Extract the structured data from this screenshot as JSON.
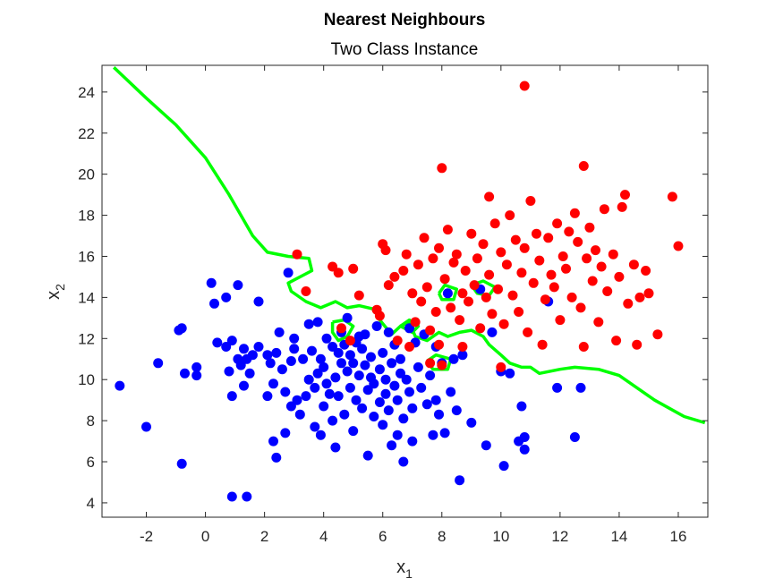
{
  "chart_data": {
    "type": "scatter",
    "title": "Nearest Neighbours",
    "subtitle": "Two Class Instance",
    "xlabel": "x",
    "xlabel_sub": "1",
    "ylabel": "x",
    "ylabel_sub": "2",
    "xlim": [
      -3.5,
      17
    ],
    "ylim": [
      3.3,
      25.3
    ],
    "xticks": [
      -2,
      0,
      2,
      4,
      6,
      8,
      10,
      12,
      14,
      16
    ],
    "yticks": [
      4,
      6,
      8,
      10,
      12,
      14,
      16,
      18,
      20,
      22,
      24
    ],
    "grid": false,
    "colors": {
      "blue": "#0000ff",
      "red": "#ff0000",
      "boundary": "#00ff00"
    },
    "series": [
      {
        "color": "#0000ff",
        "points": [
          [
            -2.9,
            9.7
          ],
          [
            -2.0,
            7.7
          ],
          [
            -1.6,
            10.8
          ],
          [
            -0.9,
            12.4
          ],
          [
            -0.8,
            12.5
          ],
          [
            -0.8,
            5.9
          ],
          [
            -0.7,
            10.3
          ],
          [
            -0.3,
            10.6
          ],
          [
            -0.3,
            10.2
          ],
          [
            0.2,
            14.7
          ],
          [
            0.3,
            13.7
          ],
          [
            0.4,
            11.8
          ],
          [
            0.7,
            11.6
          ],
          [
            0.7,
            14.0
          ],
          [
            0.8,
            10.4
          ],
          [
            0.9,
            9.2
          ],
          [
            0.9,
            11.9
          ],
          [
            0.9,
            4.3
          ],
          [
            1.1,
            11.0
          ],
          [
            1.2,
            10.7
          ],
          [
            1.3,
            11.5
          ],
          [
            1.3,
            9.7
          ],
          [
            1.4,
            4.3
          ],
          [
            1.5,
            10.3
          ],
          [
            1.6,
            11.2
          ],
          [
            1.1,
            14.6
          ],
          [
            1.4,
            11.0
          ],
          [
            1.8,
            13.8
          ],
          [
            1.8,
            11.6
          ],
          [
            2.1,
            11.2
          ],
          [
            2.1,
            9.2
          ],
          [
            2.2,
            10.8
          ],
          [
            2.3,
            7.0
          ],
          [
            2.3,
            9.8
          ],
          [
            2.4,
            6.2
          ],
          [
            2.4,
            11.3
          ],
          [
            2.5,
            12.3
          ],
          [
            2.6,
            10.5
          ],
          [
            2.7,
            7.4
          ],
          [
            2.7,
            9.4
          ],
          [
            2.8,
            15.2
          ],
          [
            2.9,
            8.7
          ],
          [
            2.9,
            10.9
          ],
          [
            3.0,
            11.5
          ],
          [
            3.0,
            12.0
          ],
          [
            3.1,
            9.0
          ],
          [
            3.2,
            8.3
          ],
          [
            3.3,
            11.0
          ],
          [
            3.4,
            9.2
          ],
          [
            3.5,
            10.0
          ],
          [
            3.5,
            12.7
          ],
          [
            3.6,
            11.4
          ],
          [
            3.7,
            7.7
          ],
          [
            3.7,
            9.6
          ],
          [
            3.8,
            10.3
          ],
          [
            3.8,
            12.8
          ],
          [
            3.9,
            11.0
          ],
          [
            3.9,
            7.3
          ],
          [
            4.0,
            10.6
          ],
          [
            4.0,
            8.7
          ],
          [
            4.1,
            9.8
          ],
          [
            4.1,
            12.0
          ],
          [
            4.2,
            9.3
          ],
          [
            4.3,
            11.6
          ],
          [
            4.3,
            8.0
          ],
          [
            4.4,
            10.1
          ],
          [
            4.4,
            6.7
          ],
          [
            4.5,
            11.3
          ],
          [
            4.5,
            9.2
          ],
          [
            4.6,
            12.3
          ],
          [
            4.6,
            10.8
          ],
          [
            4.7,
            11.7
          ],
          [
            4.7,
            8.3
          ],
          [
            4.8,
            13.0
          ],
          [
            4.8,
            10.4
          ],
          [
            4.9,
            9.6
          ],
          [
            4.9,
            11.2
          ],
          [
            5.0,
            7.5
          ],
          [
            5.0,
            10.8
          ],
          [
            5.1,
            11.8
          ],
          [
            5.1,
            9.0
          ],
          [
            5.2,
            12.1
          ],
          [
            5.2,
            10.2
          ],
          [
            5.3,
            11.5
          ],
          [
            5.3,
            8.6
          ],
          [
            5.4,
            10.7
          ],
          [
            5.4,
            12.2
          ],
          [
            5.5,
            9.5
          ],
          [
            5.5,
            6.3
          ],
          [
            5.6,
            10.1
          ],
          [
            5.6,
            11.1
          ],
          [
            5.7,
            8.2
          ],
          [
            5.7,
            9.8
          ],
          [
            5.8,
            12.6
          ],
          [
            5.9,
            10.5
          ],
          [
            5.9,
            8.9
          ],
          [
            6.0,
            11.3
          ],
          [
            6.0,
            7.8
          ],
          [
            6.1,
            9.3
          ],
          [
            6.1,
            10.0
          ],
          [
            6.2,
            12.3
          ],
          [
            6.2,
            8.5
          ],
          [
            6.3,
            10.8
          ],
          [
            6.3,
            6.8
          ],
          [
            6.4,
            9.7
          ],
          [
            6.4,
            11.7
          ],
          [
            6.5,
            7.3
          ],
          [
            6.5,
            9.0
          ],
          [
            6.6,
            10.3
          ],
          [
            6.6,
            11.0
          ],
          [
            6.7,
            8.1
          ],
          [
            6.7,
            6.0
          ],
          [
            6.8,
            10.0
          ],
          [
            6.9,
            12.5
          ],
          [
            6.9,
            9.4
          ],
          [
            7.0,
            7.0
          ],
          [
            7.0,
            8.6
          ],
          [
            7.1,
            11.8
          ],
          [
            7.2,
            10.6
          ],
          [
            7.3,
            9.6
          ],
          [
            7.4,
            12.2
          ],
          [
            7.5,
            8.8
          ],
          [
            7.6,
            10.2
          ],
          [
            7.7,
            7.3
          ],
          [
            7.8,
            11.6
          ],
          [
            7.8,
            9.0
          ],
          [
            7.9,
            8.3
          ],
          [
            8.0,
            10.8
          ],
          [
            8.1,
            7.4
          ],
          [
            8.2,
            14.2
          ],
          [
            8.3,
            9.4
          ],
          [
            8.4,
            11.0
          ],
          [
            8.5,
            8.5
          ],
          [
            8.6,
            5.1
          ],
          [
            8.7,
            11.2
          ],
          [
            9.0,
            7.9
          ],
          [
            9.3,
            14.4
          ],
          [
            9.5,
            6.8
          ],
          [
            9.7,
            12.3
          ],
          [
            10.0,
            10.4
          ],
          [
            10.1,
            5.8
          ],
          [
            10.3,
            10.3
          ],
          [
            10.6,
            7.0
          ],
          [
            10.7,
            8.7
          ],
          [
            10.8,
            6.6
          ],
          [
            10.8,
            7.2
          ],
          [
            11.9,
            9.6
          ],
          [
            12.5,
            7.2
          ],
          [
            12.7,
            9.6
          ],
          [
            11.6,
            13.8
          ]
        ]
      },
      {
        "color": "#ff0000",
        "points": [
          [
            3.1,
            16.1
          ],
          [
            3.4,
            14.3
          ],
          [
            4.3,
            15.5
          ],
          [
            4.5,
            15.2
          ],
          [
            4.6,
            12.5
          ],
          [
            4.9,
            11.9
          ],
          [
            5.0,
            15.4
          ],
          [
            5.2,
            14.1
          ],
          [
            5.8,
            13.4
          ],
          [
            5.9,
            13.1
          ],
          [
            6.0,
            16.6
          ],
          [
            6.1,
            16.3
          ],
          [
            6.2,
            14.6
          ],
          [
            6.4,
            15.0
          ],
          [
            6.5,
            11.9
          ],
          [
            6.7,
            15.3
          ],
          [
            6.8,
            16.1
          ],
          [
            6.9,
            11.6
          ],
          [
            7.0,
            14.2
          ],
          [
            7.1,
            12.8
          ],
          [
            7.2,
            15.6
          ],
          [
            7.3,
            13.8
          ],
          [
            7.4,
            16.9
          ],
          [
            7.5,
            14.5
          ],
          [
            7.6,
            12.4
          ],
          [
            7.6,
            10.8
          ],
          [
            7.7,
            15.9
          ],
          [
            7.8,
            13.3
          ],
          [
            7.9,
            11.7
          ],
          [
            7.9,
            16.4
          ],
          [
            8.0,
            20.3
          ],
          [
            8.0,
            10.7
          ],
          [
            8.1,
            14.9
          ],
          [
            8.2,
            17.3
          ],
          [
            8.3,
            13.5
          ],
          [
            8.4,
            15.7
          ],
          [
            8.5,
            16.1
          ],
          [
            8.6,
            12.9
          ],
          [
            8.7,
            14.2
          ],
          [
            8.7,
            11.6
          ],
          [
            8.8,
            15.3
          ],
          [
            8.9,
            13.8
          ],
          [
            9.0,
            17.1
          ],
          [
            9.1,
            14.6
          ],
          [
            9.2,
            15.9
          ],
          [
            9.3,
            12.5
          ],
          [
            9.4,
            16.6
          ],
          [
            9.5,
            14.0
          ],
          [
            9.6,
            18.9
          ],
          [
            9.6,
            15.1
          ],
          [
            9.7,
            13.2
          ],
          [
            9.8,
            17.6
          ],
          [
            9.9,
            14.4
          ],
          [
            10.0,
            10.6
          ],
          [
            10.0,
            16.2
          ],
          [
            10.1,
            12.7
          ],
          [
            10.2,
            15.6
          ],
          [
            10.3,
            18.0
          ],
          [
            10.4,
            14.1
          ],
          [
            10.5,
            16.8
          ],
          [
            10.6,
            13.3
          ],
          [
            10.7,
            15.2
          ],
          [
            10.8,
            24.3
          ],
          [
            10.8,
            16.4
          ],
          [
            10.9,
            12.3
          ],
          [
            11.0,
            18.7
          ],
          [
            11.1,
            14.7
          ],
          [
            11.2,
            17.1
          ],
          [
            11.3,
            15.8
          ],
          [
            11.4,
            11.7
          ],
          [
            11.5,
            13.9
          ],
          [
            11.6,
            16.9
          ],
          [
            11.7,
            15.1
          ],
          [
            11.8,
            14.5
          ],
          [
            11.9,
            17.6
          ],
          [
            12.0,
            12.9
          ],
          [
            12.1,
            16.0
          ],
          [
            12.2,
            15.4
          ],
          [
            12.3,
            17.2
          ],
          [
            12.4,
            14.0
          ],
          [
            12.5,
            18.1
          ],
          [
            12.6,
            16.7
          ],
          [
            12.7,
            13.5
          ],
          [
            12.8,
            20.4
          ],
          [
            12.8,
            11.6
          ],
          [
            12.9,
            15.9
          ],
          [
            13.0,
            17.4
          ],
          [
            13.1,
            14.8
          ],
          [
            13.2,
            16.3
          ],
          [
            13.3,
            12.8
          ],
          [
            13.4,
            15.5
          ],
          [
            13.5,
            18.3
          ],
          [
            13.6,
            14.3
          ],
          [
            13.8,
            16.1
          ],
          [
            13.9,
            11.9
          ],
          [
            14.0,
            15.0
          ],
          [
            14.1,
            18.4
          ],
          [
            14.2,
            19.0
          ],
          [
            14.3,
            13.7
          ],
          [
            14.5,
            15.6
          ],
          [
            14.6,
            11.7
          ],
          [
            14.7,
            14.0
          ],
          [
            14.9,
            15.3
          ],
          [
            15.0,
            14.2
          ],
          [
            15.3,
            12.2
          ],
          [
            15.8,
            18.9
          ],
          [
            16.0,
            16.5
          ]
        ]
      }
    ],
    "boundary": [
      [
        -3.1,
        25.2
      ],
      [
        -2.0,
        23.7
      ],
      [
        -1.0,
        22.4
      ],
      [
        0.0,
        20.8
      ],
      [
        0.8,
        19.0
      ],
      [
        1.6,
        17.0
      ],
      [
        2.1,
        16.2
      ],
      [
        2.8,
        16.0
      ],
      [
        3.5,
        15.9
      ],
      [
        3.6,
        15.3
      ],
      [
        2.8,
        14.7
      ],
      [
        2.9,
        14.3
      ],
      [
        3.4,
        13.8
      ],
      [
        3.9,
        13.5
      ],
      [
        4.4,
        13.8
      ],
      [
        4.8,
        13.5
      ],
      [
        5.2,
        13.6
      ],
      [
        5.8,
        13.4
      ],
      [
        5.9,
        12.9
      ],
      [
        6.3,
        12.2
      ],
      [
        6.6,
        12.6
      ],
      [
        6.9,
        12.8
      ],
      [
        7.1,
        12.1
      ],
      [
        7.5,
        11.9
      ],
      [
        7.9,
        12.3
      ],
      [
        8.2,
        12.1
      ],
      [
        8.6,
        12.3
      ],
      [
        9.0,
        12.4
      ],
      [
        9.4,
        12.1
      ],
      [
        9.6,
        11.7
      ],
      [
        10.0,
        11.2
      ],
      [
        10.3,
        10.8
      ],
      [
        10.7,
        10.6
      ],
      [
        11.0,
        10.6
      ],
      [
        11.3,
        10.3
      ],
      [
        12.0,
        10.5
      ],
      [
        12.5,
        10.6
      ],
      [
        13.3,
        10.5
      ],
      [
        14.0,
        10.2
      ],
      [
        15.2,
        9.0
      ],
      [
        16.2,
        8.2
      ],
      [
        16.9,
        7.9
      ]
    ],
    "boundary_islands": [
      [
        [
          4.3,
          12.8
        ],
        [
          4.7,
          12.9
        ],
        [
          5.0,
          12.6
        ],
        [
          4.8,
          12.1
        ],
        [
          4.5,
          11.9
        ],
        [
          4.3,
          12.3
        ],
        [
          4.3,
          12.8
        ]
      ],
      [
        [
          7.9,
          14.2
        ],
        [
          8.1,
          14.6
        ],
        [
          8.5,
          14.4
        ],
        [
          8.4,
          13.9
        ],
        [
          8.0,
          13.9
        ],
        [
          7.9,
          14.2
        ]
      ],
      [
        [
          9.0,
          14.6
        ],
        [
          9.4,
          14.8
        ],
        [
          9.8,
          14.5
        ],
        [
          9.6,
          14.1
        ],
        [
          9.2,
          14.2
        ],
        [
          9.0,
          14.6
        ]
      ],
      [
        [
          7.5,
          10.9
        ],
        [
          7.8,
          11.2
        ],
        [
          8.3,
          11.0
        ],
        [
          8.2,
          10.5
        ],
        [
          7.7,
          10.5
        ],
        [
          7.5,
          10.9
        ]
      ],
      [
        [
          6.6,
          12.6
        ],
        [
          6.9,
          12.9
        ],
        [
          7.2,
          12.6
        ],
        [
          7.0,
          12.3
        ],
        [
          6.6,
          12.6
        ]
      ]
    ]
  }
}
